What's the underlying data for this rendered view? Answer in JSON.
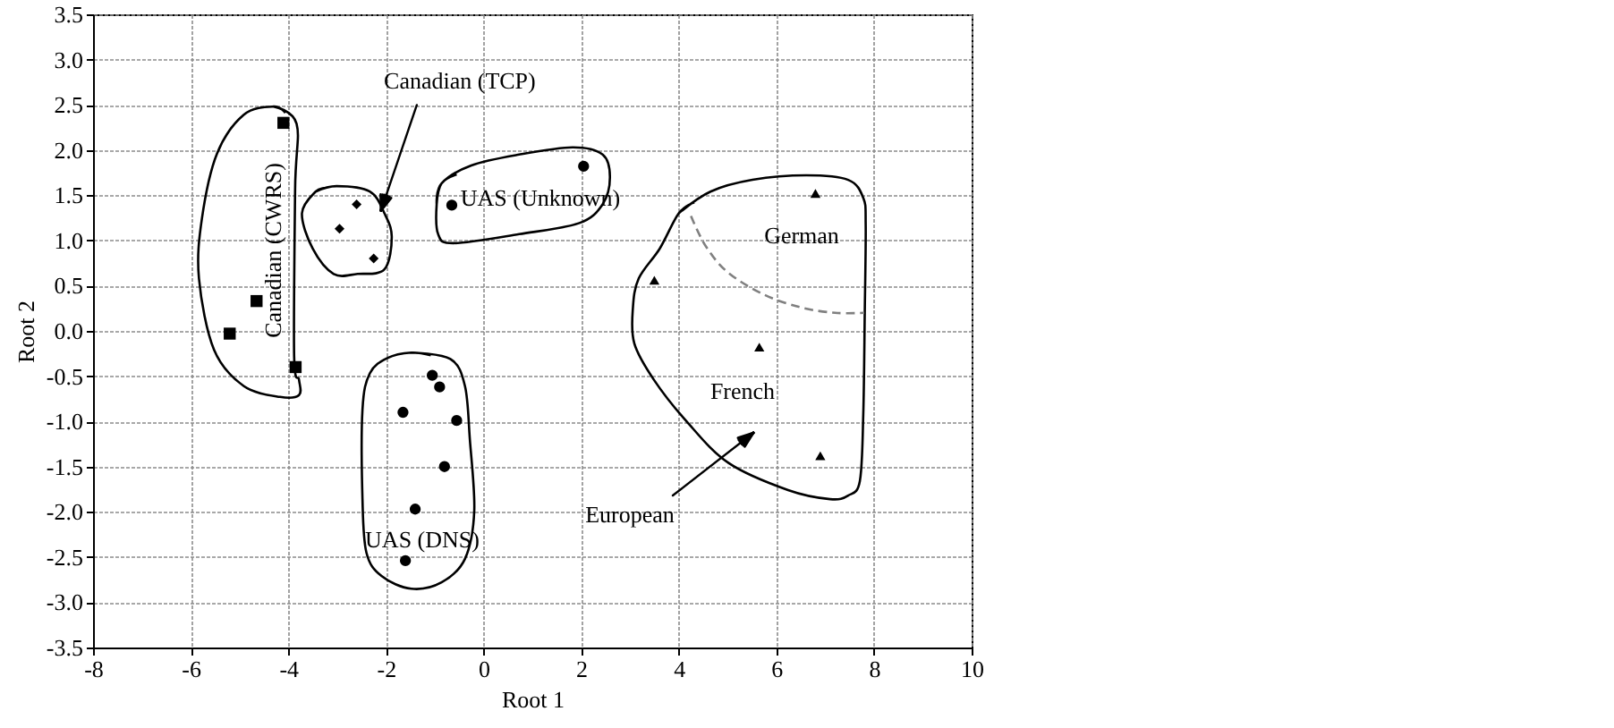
{
  "chart_data": {
    "type": "scatter",
    "xlabel": "Root 1",
    "ylabel": "Root 2",
    "xlim": [
      -8,
      10
    ],
    "ylim": [
      -3.5,
      3.5
    ],
    "xticks": [
      -8,
      -6,
      -4,
      -2,
      0,
      2,
      4,
      6,
      8,
      10
    ],
    "yticks": [
      -3.5,
      {
        "value": -3,
        "label": "-3.0"
      },
      -2.5,
      {
        "value": -2,
        "label": "-2.0"
      },
      -1.5,
      {
        "value": -1,
        "label": "-1.0"
      },
      -0.5,
      {
        "value": 0,
        "label": "0.0"
      },
      0.5,
      {
        "value": 1,
        "label": "1.0"
      },
      1.5,
      {
        "value": 2,
        "label": "2.0"
      },
      2.5,
      {
        "value": 3,
        "label": "3.0"
      },
      3.5
    ],
    "grid": true,
    "series": [
      {
        "color": "#000000",
        "marker": "square",
        "x": [
          -4.1,
          -4.65,
          -5.2,
          -3.85
        ],
        "values": [
          2.3,
          0.33,
          -0.03,
          -0.4
        ]
      },
      {
        "color": "#000000",
        "marker": "diamond",
        "x": [
          -2.6,
          -2.95,
          -2.25
        ],
        "values": [
          1.4,
          1.13,
          0.8
        ]
      },
      {
        "color": "#000000",
        "marker": "circle",
        "x": [
          -0.65,
          2.05
        ],
        "values": [
          1.39,
          1.82
        ]
      },
      {
        "color": "#000000",
        "marker": "circle",
        "x": [
          -1.05,
          -0.9,
          -1.65,
          -0.55,
          -0.8,
          -1.4,
          -1.6
        ],
        "values": [
          -0.49,
          -0.62,
          -0.9,
          -0.99,
          -1.5,
          -1.97,
          -2.54
        ]
      },
      {
        "color": "#000000",
        "marker": "triangle",
        "x": [
          6.8,
          3.5,
          5.65,
          6.9
        ],
        "values": [
          1.52,
          0.56,
          -0.18,
          -1.38
        ]
      },
      {
        "type": "line",
        "color": "#000000",
        "marker": "none",
        "line_style": "solid",
        "x": [
          -4.3,
          -3.83,
          -3.86,
          -3.88,
          -3.78,
          -3.78,
          -4.17,
          -4.91,
          -5.52,
          -5.83,
          -5.77,
          -5.46,
          -4.91,
          -4.3,
          -4.06
        ],
        "values": [
          2.48,
          2.29,
          1.57,
          -0.28,
          -0.54,
          -0.71,
          -0.73,
          -0.61,
          -0.21,
          0.58,
          1.24,
          1.96,
          2.39,
          2.48,
          2.41
        ]
      },
      {
        "type": "line",
        "color": "#000000",
        "marker": "none",
        "line_style": "solid",
        "x": [
          -3.44,
          -3.01,
          -2.33,
          -2.03,
          -1.88,
          -2.03,
          -2.58,
          -3.07,
          -3.5,
          -3.72,
          -3.44,
          -3.22
        ],
        "values": [
          1.54,
          1.6,
          1.54,
          1.3,
          1.04,
          0.68,
          0.63,
          0.63,
          0.91,
          1.3,
          1.54,
          1.58
        ]
      },
      {
        "type": "line",
        "color": "#000000",
        "marker": "none",
        "line_style": "solid",
        "x": [
          -0.96,
          -0.86,
          -0.25,
          0.73,
          1.83,
          2.44,
          2.59,
          2.44,
          1.95,
          0.73,
          -0.62,
          -0.93,
          -0.96,
          -0.86,
          -0.55
        ],
        "values": [
          1.4,
          1.63,
          1.83,
          1.95,
          2.03,
          1.95,
          1.7,
          1.4,
          1.19,
          1.07,
          0.97,
          1.07,
          1.4,
          1.63,
          1.73
        ]
      },
      {
        "type": "line",
        "color": "#000000",
        "marker": "none",
        "line_style": "solid",
        "x": [
          -1.48,
          -0.68,
          -0.38,
          -0.28,
          -0.19,
          -0.38,
          -0.86,
          -1.48,
          -2.09,
          -2.4,
          -2.48,
          -2.48,
          -2.33,
          -1.97,
          -1.48,
          -1.08
        ],
        "values": [
          -0.24,
          -0.31,
          -0.61,
          -1.2,
          -1.99,
          -2.52,
          -2.78,
          -2.85,
          -2.71,
          -2.45,
          -1.86,
          -0.87,
          -0.47,
          -0.3,
          -0.24,
          -0.27
        ]
      },
      {
        "type": "line",
        "color": "#000000",
        "marker": "none",
        "line_style": "solid",
        "x": [
          4.0,
          4.65,
          5.51,
          6.61,
          7.47,
          7.78,
          7.83,
          7.81,
          7.78,
          7.71,
          7.47,
          7.1,
          6.24,
          5.02,
          4.16,
          3.49,
          3.09,
          3.06,
          3.18,
          3.61,
          4.0,
          4.32
        ],
        "values": [
          1.3,
          1.54,
          1.67,
          1.72,
          1.67,
          1.47,
          1.17,
          0.18,
          -0.93,
          -1.66,
          -1.82,
          -1.86,
          -1.76,
          -1.46,
          -1.0,
          -0.54,
          -0.14,
          0.25,
          0.58,
          0.91,
          1.3,
          1.42
        ]
      },
      {
        "type": "line",
        "color": "#808080",
        "marker": "none",
        "line_style": "dashed",
        "x": [
          4.25,
          4.55,
          5.0,
          5.75,
          6.5,
          7.2,
          7.8
        ],
        "values": [
          1.27,
          0.94,
          0.65,
          0.4,
          0.26,
          0.2,
          0.2
        ]
      }
    ],
    "annotations": [
      "Canadian (CWRS)",
      {
        "text": "Canadian (TCP)",
        "x": -2.1,
        "y": 1.33
      },
      "UAS (Unknown)",
      "UAS (DNS)",
      "German",
      "French",
      "European"
    ]
  }
}
